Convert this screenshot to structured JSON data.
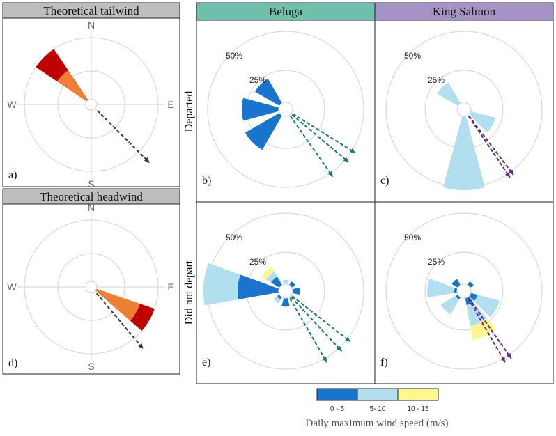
{
  "colors": {
    "bin_0_5": "#1874cd",
    "bin_5_10": "#b2dfee",
    "bin_10_15": "#fff68f",
    "beluga_header": "#6fbfad",
    "king_salmon_header": "#a493c4",
    "theoretical_header": "#bebebe",
    "beluga_arrow": "#167b6c",
    "king_salmon_arrow": "#5b2c86",
    "theory_arrow": "#333333",
    "tail_light": "#ee7f35",
    "tail_dark": "#c00000",
    "grid": "#d9d9d9"
  },
  "headers": {
    "tailwind": "Theoretical tailwind",
    "headwind": "Theoretical headwind",
    "beluga": "Beluga",
    "king_salmon": "King Salmon"
  },
  "row_labels": {
    "departed": "Departed",
    "did_not_depart": "Did not depart"
  },
  "compass": {
    "n": "N",
    "e": "E",
    "s": "S",
    "w": "W"
  },
  "legend": {
    "title": "Daily maximum wind speed (m/s)",
    "labels": [
      "0 - 5",
      "5- 10",
      "10 - 15"
    ]
  },
  "chart_data": [
    {
      "panel": "a)",
      "type": "rose",
      "title": "Theoretical tailwind",
      "wedges": [
        {
          "direction_deg": 315,
          "width_deg": 22,
          "inner_share": 0.58,
          "outer_share": 1.0
        }
      ],
      "arrows_deg": [
        135
      ]
    },
    {
      "panel": "d)",
      "type": "rose",
      "title": "Theoretical headwind",
      "wedges": [
        {
          "direction_deg": 120,
          "width_deg": 22,
          "inner_share": 0.75,
          "outer_share": 1.0
        }
      ],
      "arrows_deg": [
        140
      ]
    },
    {
      "panel": "b)",
      "type": "rose",
      "site": "Beluga",
      "condition": "Departed",
      "ring_labels": [
        "25%",
        "50%"
      ],
      "rmax_percent": 50,
      "bins": [
        "0 - 5",
        "5- 10",
        "10 - 15"
      ],
      "sectors": [
        {
          "direction_deg": 315,
          "values": [
            20,
            0,
            0
          ]
        },
        {
          "direction_deg": 270,
          "values": [
            26,
            0,
            0
          ]
        },
        {
          "direction_deg": 225,
          "values": [
            28,
            0,
            0
          ]
        }
      ],
      "arrows_deg": [
        122,
        130,
        145
      ]
    },
    {
      "panel": "c)",
      "type": "rose",
      "site": "King Salmon",
      "condition": "Departed",
      "ring_labels": [
        "25%",
        "50%"
      ],
      "rmax_percent": 50,
      "bins": [
        "0 - 5",
        "5- 10",
        "10 - 15"
      ],
      "sectors": [
        {
          "direction_deg": 315,
          "values": [
            0,
            17,
            0
          ]
        },
        {
          "direction_deg": 120,
          "values": [
            0,
            18,
            0
          ]
        },
        {
          "direction_deg": 180,
          "values": [
            0,
            52,
            0
          ]
        }
      ],
      "arrows_deg": [
        143,
        146
      ]
    },
    {
      "panel": "e)",
      "type": "rose",
      "site": "Beluga",
      "condition": "Did not depart",
      "ring_labels": [
        "25%",
        "50%"
      ],
      "rmax_percent": 50,
      "bins": [
        "0 - 5",
        "5- 10",
        "10 - 15"
      ],
      "sectors": [
        {
          "direction_deg": 275,
          "values": [
            29,
            24,
            0
          ]
        },
        {
          "direction_deg": 315,
          "values": [
            7,
            4,
            4
          ]
        },
        {
          "direction_deg": 0,
          "values": [
            0,
            3,
            0
          ]
        },
        {
          "direction_deg": 45,
          "values": [
            3,
            0,
            0
          ]
        },
        {
          "direction_deg": 90,
          "values": [
            5,
            0,
            0
          ]
        },
        {
          "direction_deg": 135,
          "values": [
            0,
            3,
            0
          ]
        },
        {
          "direction_deg": 180,
          "values": [
            6,
            0,
            0
          ]
        },
        {
          "direction_deg": 225,
          "values": [
            2,
            3,
            0
          ]
        }
      ],
      "arrows_deg": [
        128,
        137,
        150
      ]
    },
    {
      "panel": "f)",
      "type": "rose",
      "site": "King Salmon",
      "condition": "Did not depart",
      "ring_labels": [
        "25%",
        "50%"
      ],
      "rmax_percent": 50,
      "bins": [
        "0 - 5",
        "5- 10",
        "10 - 15"
      ],
      "sectors": [
        {
          "direction_deg": 275,
          "values": [
            2,
            19,
            0
          ]
        },
        {
          "direction_deg": 225,
          "values": [
            2,
            12,
            0
          ]
        },
        {
          "direction_deg": 315,
          "values": [
            5,
            0,
            0
          ]
        },
        {
          "direction_deg": 45,
          "values": [
            3,
            0,
            0
          ]
        },
        {
          "direction_deg": 120,
          "values": [
            5,
            16,
            0
          ]
        },
        {
          "direction_deg": 155,
          "values": [
            5,
            15,
            10
          ]
        }
      ],
      "arrows_deg": [
        145,
        150
      ]
    }
  ]
}
